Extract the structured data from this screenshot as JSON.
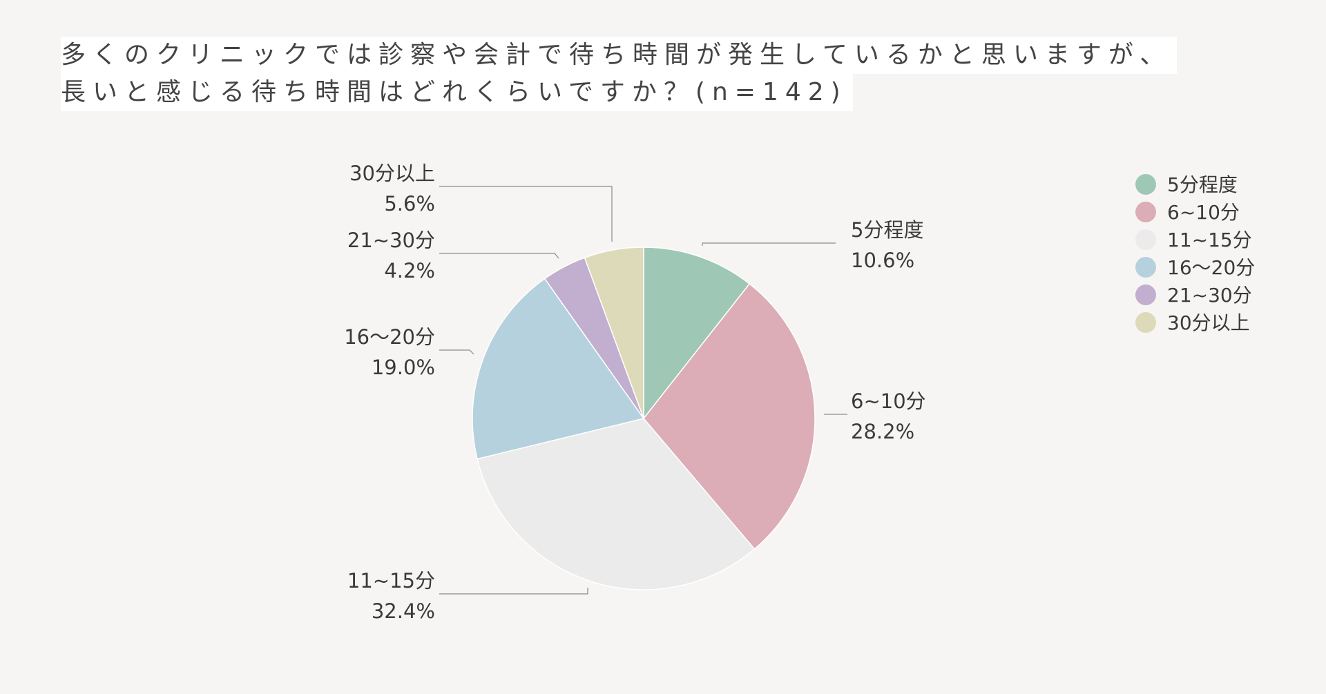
{
  "chart_data": {
    "type": "pie",
    "title": {
      "line1": "多くのクリニックでは診察や会計で待ち時間が発生しているかと思いますが、",
      "line2": "長いと感じる待ち時間はどれくらいですか？(n=142)"
    },
    "categories": [
      "5分程度",
      "6~10分",
      "11~15分",
      "16〜20分",
      "21~30分",
      "30分以上"
    ],
    "values": [
      10.6,
      28.2,
      32.4,
      19.0,
      4.2,
      5.6
    ],
    "value_labels": [
      "10.6%",
      "28.2%",
      "32.4%",
      "19.0%",
      "4.2%",
      "5.6%"
    ],
    "colors": [
      "#9fc7b5",
      "#dcadb6",
      "#ebebeb",
      "#b6d1de",
      "#c2aecf",
      "#dcdab9"
    ],
    "legend_placement": "right"
  }
}
